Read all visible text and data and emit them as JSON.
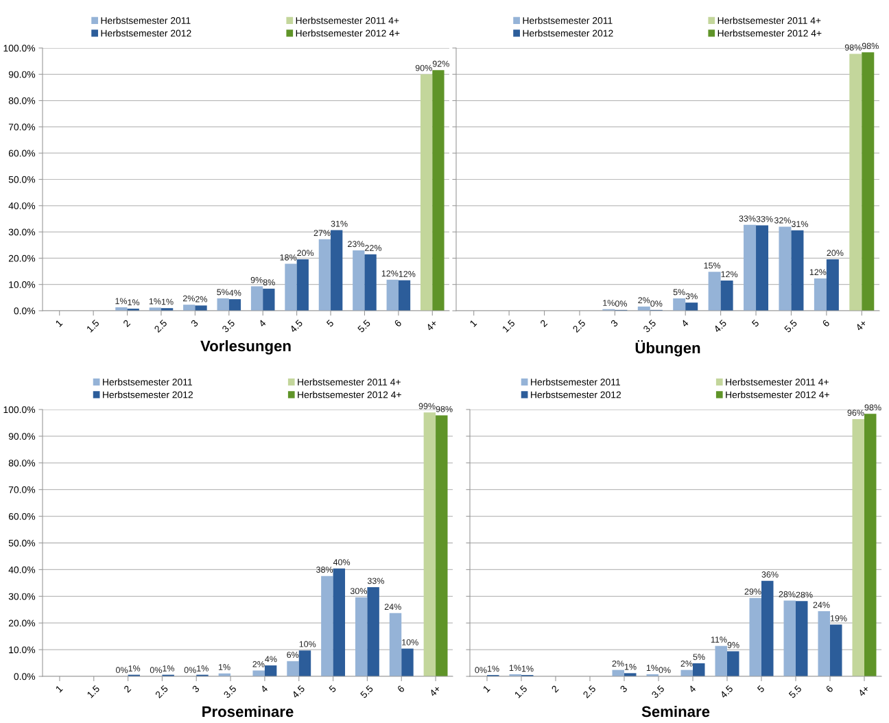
{
  "chart_data": [
    {
      "type": "bar",
      "title": "Vorlesungen",
      "categories": [
        "1",
        "1.5",
        "2",
        "2.5",
        "3",
        "3.5",
        "4",
        "4.5",
        "5",
        "5.5",
        "6",
        "4+"
      ],
      "ylim": [
        0,
        100
      ],
      "yticks": [
        {
          "value": 0,
          "label": "0.0%"
        },
        {
          "value": 10,
          "label": "10.0%"
        },
        {
          "value": 20,
          "label": "20.0%"
        },
        {
          "value": 30,
          "label": "30.0%"
        },
        {
          "value": 40,
          "label": "40.0%"
        },
        {
          "value": 50,
          "label": "50.0%"
        },
        {
          "value": 60,
          "label": "60.0%"
        },
        {
          "value": 70,
          "label": "70.0%"
        },
        {
          "value": 80,
          "label": "80.0%"
        },
        {
          "value": 90,
          "label": "90.0%"
        },
        {
          "value": 100,
          "label": "100.0%"
        }
      ],
      "grid": "y",
      "legend": "top",
      "series": [
        {
          "name": "Herbstsemester 2011",
          "color": "#95b3d7",
          "values": [
            null,
            null,
            1.3,
            1.2,
            2.3,
            4.7,
            9.3,
            17.9,
            27.2,
            23.0,
            11.8,
            null
          ],
          "value_labels": [
            null,
            null,
            "1%",
            "1%",
            "2%",
            "5%",
            "9%",
            "18%",
            "27%",
            "23%",
            "12%",
            null
          ]
        },
        {
          "name": "Herbstsemester 2012",
          "color": "#2c5d9a",
          "values": [
            null,
            null,
            0.8,
            1.0,
            2.0,
            4.4,
            8.4,
            19.6,
            30.7,
            21.5,
            11.6,
            null
          ],
          "value_labels": [
            null,
            null,
            "1%",
            "1%",
            "2%",
            "4%",
            "8%",
            "20%",
            "31%",
            "22%",
            "12%",
            null
          ]
        },
        {
          "name": "Herbstsemester 2011 4+",
          "color": "#c3d69b",
          "values": [
            null,
            null,
            null,
            null,
            null,
            null,
            null,
            null,
            null,
            null,
            null,
            90.0
          ],
          "value_labels": [
            null,
            null,
            null,
            null,
            null,
            null,
            null,
            null,
            null,
            null,
            null,
            "90%"
          ]
        },
        {
          "name": "Herbstsemester 2012 4+",
          "color": "#5f9428",
          "values": [
            null,
            null,
            null,
            null,
            null,
            null,
            null,
            null,
            null,
            null,
            null,
            91.6
          ],
          "value_labels": [
            null,
            null,
            null,
            null,
            null,
            null,
            null,
            null,
            null,
            null,
            null,
            "92%"
          ]
        }
      ]
    },
    {
      "type": "bar",
      "title": "Übungen",
      "categories": [
        "1",
        "1.5",
        "2",
        "2.5",
        "3",
        "3.5",
        "4",
        "4.5",
        "5",
        "5.5",
        "6",
        "4+"
      ],
      "ylim": [
        0,
        100
      ],
      "yticks": [
        {
          "value": 0,
          "label": null
        },
        {
          "value": 10,
          "label": null
        },
        {
          "value": 20,
          "label": null
        },
        {
          "value": 30,
          "label": null
        },
        {
          "value": 40,
          "label": null
        },
        {
          "value": 50,
          "label": null
        },
        {
          "value": 60,
          "label": null
        },
        {
          "value": 70,
          "label": null
        },
        {
          "value": 80,
          "label": null
        },
        {
          "value": 90,
          "label": null
        },
        {
          "value": 100,
          "label": null
        }
      ],
      "tick_labels": "x",
      "grid": "y",
      "legend": "top",
      "series": [
        {
          "name": "Herbstsemester 2011",
          "color": "#95b3d7",
          "values": [
            null,
            null,
            null,
            null,
            0.6,
            1.6,
            4.7,
            14.8,
            32.7,
            32.0,
            12.3,
            null
          ],
          "value_labels": [
            null,
            null,
            null,
            null,
            "1%",
            "2%",
            "5%",
            "15%",
            "33%",
            "32%",
            "12%",
            null
          ]
        },
        {
          "name": "Herbstsemester 2012",
          "color": "#2c5d9a",
          "values": [
            null,
            null,
            null,
            null,
            0.3,
            0.3,
            3.1,
            11.5,
            32.5,
            30.6,
            19.6,
            null
          ],
          "value_labels": [
            null,
            null,
            null,
            null,
            "0%",
            "0%",
            "3%",
            "12%",
            "33%",
            "31%",
            "20%",
            null
          ]
        },
        {
          "name": "Herbstsemester 2011 4+",
          "color": "#c3d69b",
          "values": [
            null,
            null,
            null,
            null,
            null,
            null,
            null,
            null,
            null,
            null,
            null,
            97.8
          ],
          "value_labels": [
            null,
            null,
            null,
            null,
            null,
            null,
            null,
            null,
            null,
            null,
            null,
            "98%"
          ]
        },
        {
          "name": "Herbstsemester 2012 4+",
          "color": "#5f9428",
          "values": [
            null,
            null,
            null,
            null,
            null,
            null,
            null,
            null,
            null,
            null,
            null,
            98.4
          ],
          "value_labels": [
            null,
            null,
            null,
            null,
            null,
            null,
            null,
            null,
            null,
            null,
            null,
            "98%"
          ]
        }
      ]
    },
    {
      "type": "bar",
      "title": "Proseminare",
      "categories": [
        "1",
        "1.5",
        "2",
        "2.5",
        "3",
        "3.5",
        "4",
        "4.5",
        "5",
        "5.5",
        "6",
        "4+"
      ],
      "ylim": [
        0,
        100
      ],
      "yticks": [
        {
          "value": 0,
          "label": "0.0%"
        },
        {
          "value": 10,
          "label": "10.0%"
        },
        {
          "value": 20,
          "label": "20.0%"
        },
        {
          "value": 30,
          "label": "30.0%"
        },
        {
          "value": 40,
          "label": "40.0%"
        },
        {
          "value": 50,
          "label": "50.0%"
        },
        {
          "value": 60,
          "label": "60.0%"
        },
        {
          "value": 70,
          "label": "70.0%"
        },
        {
          "value": 80,
          "label": "80.0%"
        },
        {
          "value": 90,
          "label": "90.0%"
        },
        {
          "value": 100,
          "label": "100.0%"
        }
      ],
      "grid": "y",
      "legend": "top",
      "series": [
        {
          "name": "Herbstsemester 2011",
          "color": "#95b3d7",
          "values": [
            null,
            null,
            0,
            0,
            0,
            1.1,
            2.2,
            5.7,
            37.6,
            29.6,
            23.7,
            null
          ],
          "value_labels": [
            null,
            null,
            "0%",
            "0%",
            "0%",
            "1%",
            "2%",
            "6%",
            "38%",
            "30%",
            "24%",
            null
          ]
        },
        {
          "name": "Herbstsemester 2012",
          "color": "#2c5d9a",
          "values": [
            null,
            null,
            0.6,
            0.6,
            0.6,
            null,
            4.1,
            9.7,
            40.4,
            33.4,
            10.4,
            null
          ],
          "value_labels": [
            null,
            null,
            "1%",
            "1%",
            "1%",
            null,
            "4%",
            "10%",
            "40%",
            "33%",
            "10%",
            null
          ]
        },
        {
          "name": "Herbstsemester 2011 4+",
          "color": "#c3d69b",
          "values": [
            null,
            null,
            null,
            null,
            null,
            null,
            null,
            null,
            null,
            null,
            null,
            98.9
          ],
          "value_labels": [
            null,
            null,
            null,
            null,
            null,
            null,
            null,
            null,
            null,
            null,
            null,
            "99%"
          ]
        },
        {
          "name": "Herbstsemester 2012 4+",
          "color": "#5f9428",
          "values": [
            null,
            null,
            null,
            null,
            null,
            null,
            null,
            null,
            null,
            null,
            null,
            97.8
          ],
          "value_labels": [
            null,
            null,
            null,
            null,
            null,
            null,
            null,
            null,
            null,
            null,
            null,
            "98%"
          ]
        }
      ]
    },
    {
      "type": "bar",
      "title": "Seminare",
      "categories": [
        "1",
        "1.5",
        "2",
        "2.5",
        "3",
        "3.5",
        "4",
        "4.5",
        "5",
        "5.5",
        "6",
        "4+"
      ],
      "ylim": [
        0,
        100
      ],
      "yticks": [
        {
          "value": 0,
          "label": null
        },
        {
          "value": 10,
          "label": null
        },
        {
          "value": 20,
          "label": null
        },
        {
          "value": 30,
          "label": null
        },
        {
          "value": 40,
          "label": null
        },
        {
          "value": 50,
          "label": null
        },
        {
          "value": 60,
          "label": null
        },
        {
          "value": 70,
          "label": null
        },
        {
          "value": 80,
          "label": null
        },
        {
          "value": 90,
          "label": null
        },
        {
          "value": 100,
          "label": null
        }
      ],
      "tick_labels": "x",
      "grid": "y",
      "legend": "top",
      "series": [
        {
          "name": "Herbstsemester 2011",
          "color": "#95b3d7",
          "values": [
            0,
            0.8,
            null,
            null,
            2.4,
            0.8,
            2.4,
            11.4,
            29.4,
            28.4,
            24.4,
            null
          ],
          "value_labels": [
            "0%",
            "1%",
            null,
            null,
            "2%",
            "1%",
            "2%",
            "11%",
            "29%",
            "28%",
            "24%",
            null
          ]
        },
        {
          "name": "Herbstsemester 2012",
          "color": "#2c5d9a",
          "values": [
            0.5,
            0.5,
            null,
            null,
            1.2,
            0,
            4.9,
            9.4,
            35.8,
            28.2,
            19.4,
            null
          ],
          "value_labels": [
            "1%",
            "1%",
            null,
            null,
            "1%",
            "0%",
            "5%",
            "9%",
            "36%",
            "28%",
            "19%",
            null
          ]
        },
        {
          "name": "Herbstsemester 2011 4+",
          "color": "#c3d69b",
          "values": [
            null,
            null,
            null,
            null,
            null,
            null,
            null,
            null,
            null,
            null,
            null,
            96.4
          ],
          "value_labels": [
            null,
            null,
            null,
            null,
            null,
            null,
            null,
            null,
            null,
            null,
            null,
            "96%"
          ]
        },
        {
          "name": "Herbstsemester 2012 4+",
          "color": "#5f9428",
          "values": [
            null,
            null,
            null,
            null,
            null,
            null,
            null,
            null,
            null,
            null,
            null,
            98.4
          ],
          "value_labels": [
            null,
            null,
            null,
            null,
            null,
            null,
            null,
            null,
            null,
            null,
            null,
            "98%"
          ]
        }
      ]
    }
  ]
}
